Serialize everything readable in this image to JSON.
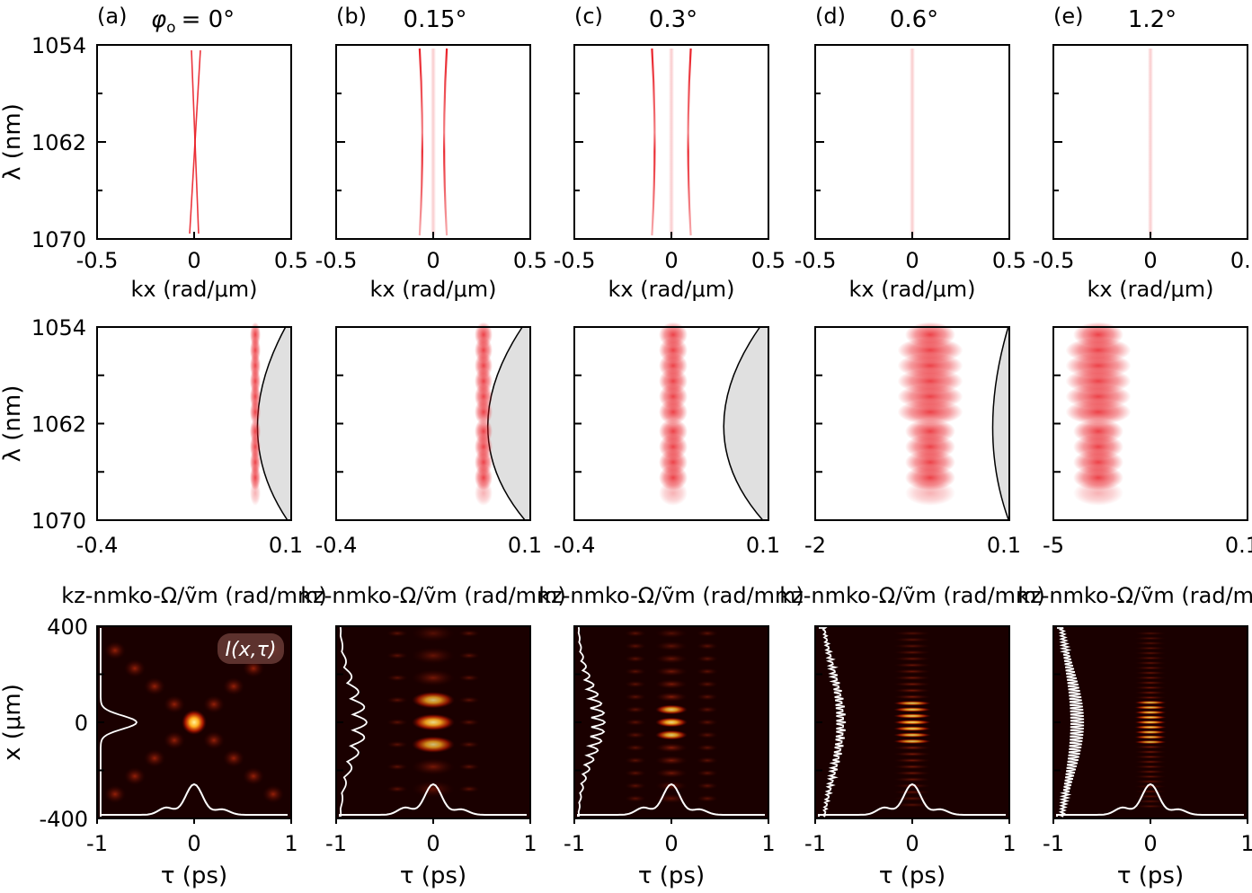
{
  "columns": [
    {
      "letter": "(a)",
      "angle_prefix": "φ",
      "angle_sub": "o",
      "angle_value": "= 0°",
      "row2_xticks": [
        "-0.4",
        "0.1"
      ]
    },
    {
      "letter": "(b)",
      "angle_prefix": "",
      "angle_sub": "",
      "angle_value": "0.15°",
      "row2_xticks": [
        "-0.4",
        "0.1"
      ]
    },
    {
      "letter": "(c)",
      "angle_prefix": "",
      "angle_sub": "",
      "angle_value": "0.3°",
      "row2_xticks": [
        "-0.4",
        "0.1"
      ]
    },
    {
      "letter": "(d)",
      "angle_prefix": "",
      "angle_sub": "",
      "angle_value": "0.6°",
      "row2_xticks": [
        "-2",
        "0.1"
      ]
    },
    {
      "letter": "(e)",
      "angle_prefix": "",
      "angle_sub": "",
      "angle_value": "1.2°",
      "row2_xticks": [
        "-5",
        "0.1"
      ]
    }
  ],
  "row1": {
    "xlabel": "kx (rad/μm)",
    "xticks": [
      "-0.5",
      "0",
      "0.5"
    ],
    "yticks": [
      "1054",
      "1062",
      "1070"
    ],
    "ylabel": "λ (nm)"
  },
  "row2": {
    "xlabel": "kz-nmko-Ω/ṽm (rad/mm)",
    "yticks": [
      "1054",
      "1062",
      "1070"
    ],
    "ylabel": "λ (nm)"
  },
  "row3": {
    "xlabel": "τ (ps)",
    "xticks": [
      "-1",
      "0",
      "1"
    ],
    "yticks": [
      "400",
      "0",
      "-400"
    ],
    "ylabel": "x (μm)",
    "inset_label": "I(x,τ)"
  },
  "colors": {
    "spectral_red": "#e8141c",
    "heatmap_dark": "#1a0000",
    "heatmap_hot": "#ffd23c",
    "forbidden_gray": "#e0e0e0"
  }
}
